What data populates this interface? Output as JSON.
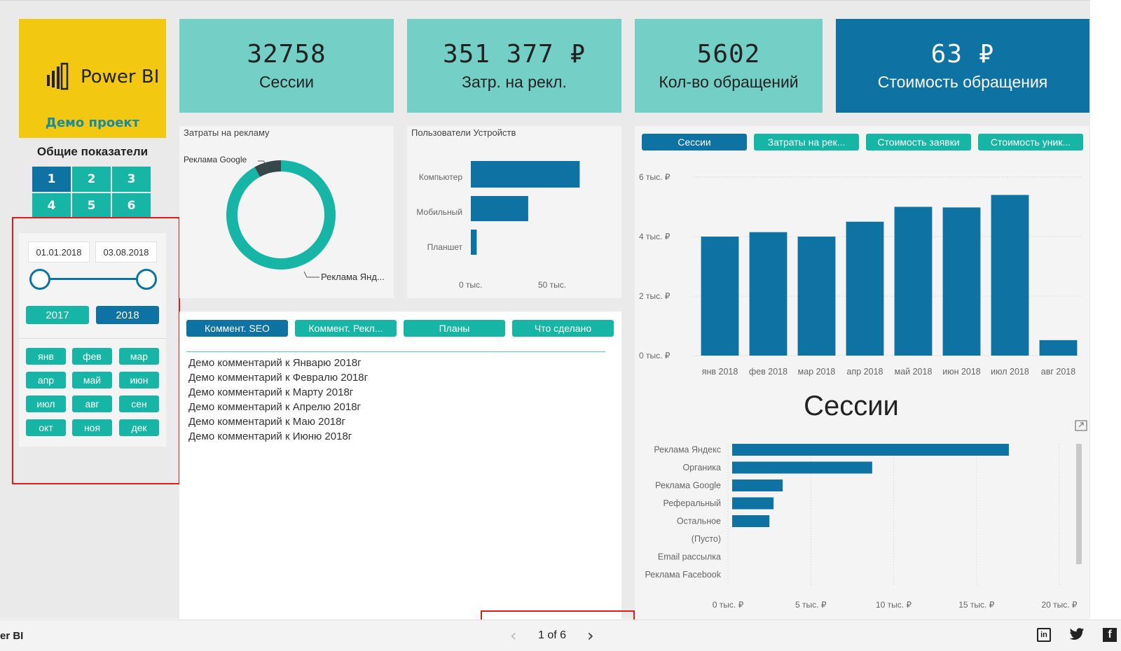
{
  "logo": {
    "name": "Power BI",
    "project": "Демо проект"
  },
  "kpis": [
    {
      "value": "32758",
      "label": "Сессии"
    },
    {
      "value": "351 377 ₽",
      "label": "Затр. на рекл."
    },
    {
      "value": "5602",
      "label": "Кол-во обращений"
    },
    {
      "value": "63 ₽",
      "label": "Стоимость обращения"
    }
  ],
  "sidebar": {
    "title": "Общие показатели",
    "pages": [
      "1",
      "2",
      "3",
      "4",
      "5",
      "6"
    ],
    "active_page": "1",
    "date_from": "01.01.2018",
    "date_to": "03.08.2018",
    "years": [
      "2017",
      "2018"
    ],
    "active_year": "2018",
    "months": [
      "янв",
      "фев",
      "мар",
      "апр",
      "май",
      "июн",
      "июл",
      "авг",
      "сен",
      "окт",
      "ноя",
      "дек"
    ]
  },
  "donut": {
    "title": "Затраты на рекламу",
    "label_google": "Реклама Google",
    "label_yandex": "Реклама Янд...",
    "colors": {
      "yandex": "#17b5a5",
      "google": "#374649"
    }
  },
  "devices": {
    "title": "Пользователи Устройств",
    "tick0": "0 тыс.",
    "tick1": "50 тыс."
  },
  "comment_tabs": [
    "Коммент. SEO",
    "Коммент. Рекл...",
    "Планы",
    "Что сделано"
  ],
  "comments": [
    "Демо комментарий к Январю 2018г",
    "Демо комментарий к Февралю 2018г",
    "Демо комментарий к Марту 2018г",
    "Демо комментарий к Апрелю 2018г",
    "Демо комментарий к Маю 2018г",
    "Демо комментарий к Июню 2018г"
  ],
  "metric_tabs": [
    "Сессии",
    "Затраты на рек...",
    "Стоимость заявки",
    "Стоимость уник..."
  ],
  "sources_title": "Сессии",
  "footer": {
    "brand": "er BI",
    "page": "1 of 6"
  },
  "colors": {
    "accent": "#0e72a2",
    "teal": "#17b5a5",
    "kpi": "#74cfc7",
    "logo": "#f2c811"
  },
  "chart_data": [
    {
      "type": "pie",
      "title": "Затраты на рекламу",
      "categories": [
        "Реклама Яндекс",
        "Реклама Google"
      ],
      "values": [
        92,
        8
      ]
    },
    {
      "type": "bar",
      "title": "Пользователи Устройств",
      "orientation": "horizontal",
      "categories": [
        "Компьютер",
        "Мобильный",
        "Планшет"
      ],
      "values": [
        74,
        39,
        4
      ],
      "xlim": [
        0,
        100
      ]
    },
    {
      "type": "bar",
      "orientation": "vertical",
      "categories": [
        "янв 2018",
        "фев 2018",
        "мар 2018",
        "апр 2018",
        "май 2018",
        "июн 2018",
        "июл 2018",
        "авг 2018"
      ],
      "values": [
        4000,
        4150,
        4000,
        4500,
        5000,
        4980,
        5400,
        520
      ],
      "y_ticks": [
        "0 тыс. ₽",
        "2 тыс. ₽",
        "4 тыс. ₽",
        "6 тыс. ₽"
      ],
      "ylim": [
        0,
        6000
      ]
    },
    {
      "type": "bar",
      "title": "Сессии",
      "orientation": "horizontal",
      "categories": [
        "Реклама Яндекс",
        "Органика",
        "Реклама Google",
        "Реферальный",
        "Остальное",
        "(Пусто)",
        "Email рассылка",
        "Реклама Facebook"
      ],
      "values": [
        16700,
        8450,
        3050,
        2500,
        2250,
        0,
        0,
        0
      ],
      "x_ticks": [
        "0 тыс. ₽",
        "5 тыс. ₽",
        "10 тыс. ₽",
        "15 тыс. ₽",
        "20 тыс. ₽"
      ],
      "xlim": [
        0,
        20000
      ]
    }
  ]
}
